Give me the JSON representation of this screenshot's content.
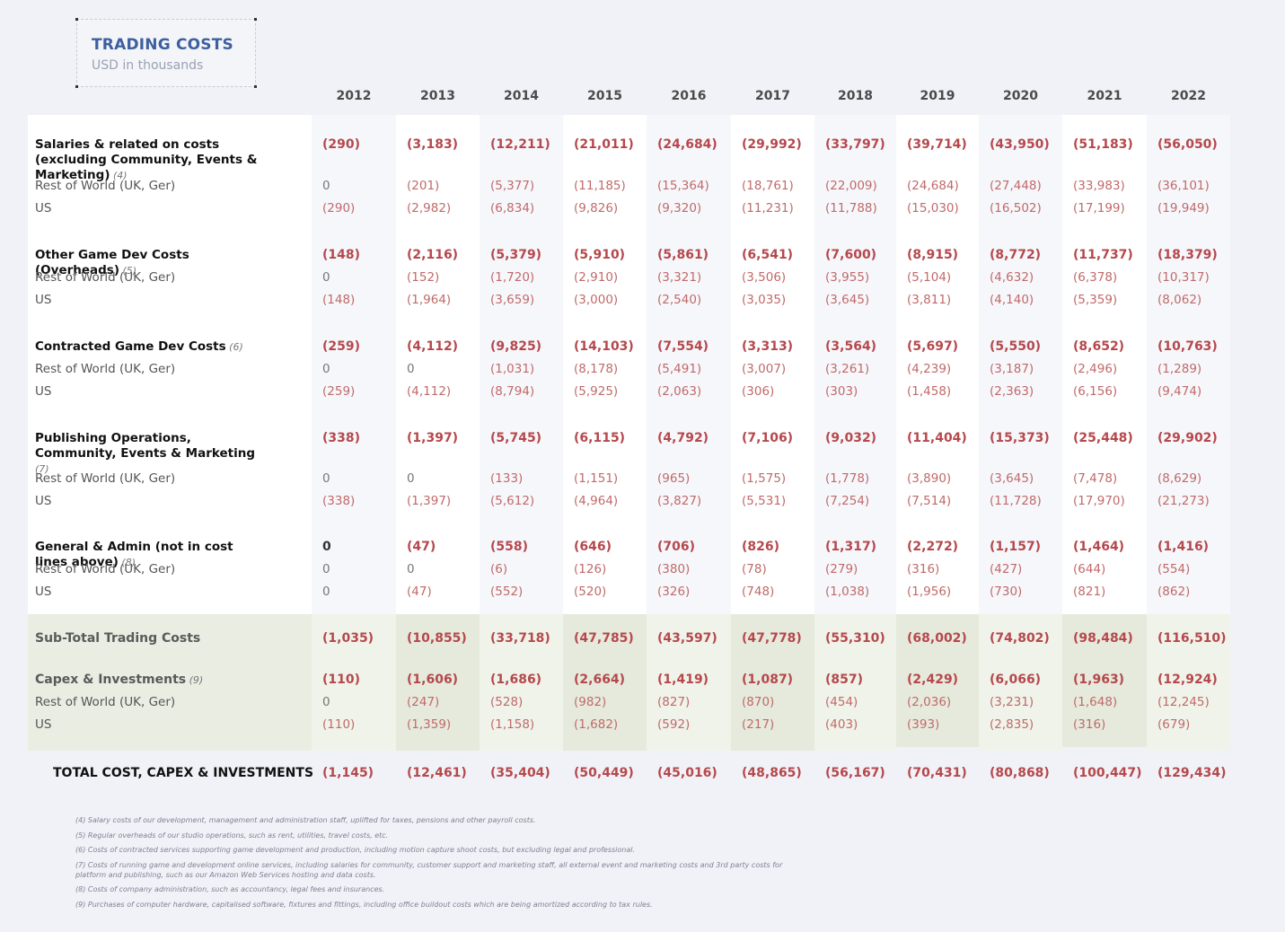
{
  "title": "TRADING COSTS",
  "subtitle": "USD in thousands",
  "years": [
    "2012",
    "2013",
    "2014",
    "2015",
    "2016",
    "2017",
    "2018",
    "2019",
    "2020",
    "2021",
    "2022"
  ],
  "rows": [
    {
      "type": "h",
      "label": "Salaries & related on costs (excluding Community, Events & Marketing)",
      "fn": "(4)",
      "values": [
        "(290)",
        "(3,183)",
        "(12,211)",
        "(21,011)",
        "(24,684)",
        "(29,992)",
        "(33,797)",
        "(39,714)",
        "(43,950)",
        "(51,183)",
        "(56,050)"
      ]
    },
    {
      "type": "d",
      "label": "Rest of World (UK, Ger)",
      "values": [
        "0",
        "(201)",
        "(5,377)",
        "(11,185)",
        "(15,364)",
        "(18,761)",
        "(22,009)",
        "(24,684)",
        "(27,448)",
        "(33,983)",
        "(36,101)"
      ]
    },
    {
      "type": "d",
      "label": "US",
      "values": [
        "(290)",
        "(2,982)",
        "(6,834)",
        "(9,826)",
        "(9,320)",
        "(11,231)",
        "(11,788)",
        "(15,030)",
        "(16,502)",
        "(17,199)",
        "(19,949)"
      ]
    },
    {
      "type": "h",
      "label": "Other Game Dev Costs (Overheads)",
      "fn": "(5)",
      "values": [
        "(148)",
        "(2,116)",
        "(5,379)",
        "(5,910)",
        "(5,861)",
        "(6,541)",
        "(7,600)",
        "(8,915)",
        "(8,772)",
        "(11,737)",
        "(18,379)"
      ]
    },
    {
      "type": "d",
      "label": "Rest of World (UK, Ger)",
      "values": [
        "0",
        "(152)",
        "(1,720)",
        "(2,910)",
        "(3,321)",
        "(3,506)",
        "(3,955)",
        "(5,104)",
        "(4,632)",
        "(6,378)",
        "(10,317)"
      ]
    },
    {
      "type": "d",
      "label": "US",
      "values": [
        "(148)",
        "(1,964)",
        "(3,659)",
        "(3,000)",
        "(2,540)",
        "(3,035)",
        "(3,645)",
        "(3,811)",
        "(4,140)",
        "(5,359)",
        "(8,062)"
      ]
    },
    {
      "type": "h",
      "label": "Contracted Game Dev Costs",
      "fn": "(6)",
      "values": [
        "(259)",
        "(4,112)",
        "(9,825)",
        "(14,103)",
        "(7,554)",
        "(3,313)",
        "(3,564)",
        "(5,697)",
        "(5,550)",
        "(8,652)",
        "(10,763)"
      ]
    },
    {
      "type": "d",
      "label": "Rest of World (UK, Ger)",
      "values": [
        "0",
        "0",
        "(1,031)",
        "(8,178)",
        "(5,491)",
        "(3,007)",
        "(3,261)",
        "(4,239)",
        "(3,187)",
        "(2,496)",
        "(1,289)"
      ]
    },
    {
      "type": "d",
      "label": "US",
      "values": [
        "(259)",
        "(4,112)",
        "(8,794)",
        "(5,925)",
        "(2,063)",
        "(306)",
        "(303)",
        "(1,458)",
        "(2,363)",
        "(6,156)",
        "(9,474)"
      ]
    },
    {
      "type": "h",
      "label": "Publishing Operations, Community, Events & Marketing",
      "fn": "(7)",
      "values": [
        "(338)",
        "(1,397)",
        "(5,745)",
        "(6,115)",
        "(4,792)",
        "(7,106)",
        "(9,032)",
        "(11,404)",
        "(15,373)",
        "(25,448)",
        "(29,902)"
      ]
    },
    {
      "type": "d",
      "label": "Rest of World (UK, Ger)",
      "values": [
        "0",
        "0",
        "(133)",
        "(1,151)",
        "(965)",
        "(1,575)",
        "(1,778)",
        "(3,890)",
        "(3,645)",
        "(7,478)",
        "(8,629)"
      ]
    },
    {
      "type": "d",
      "label": "US",
      "values": [
        "(338)",
        "(1,397)",
        "(5,612)",
        "(4,964)",
        "(3,827)",
        "(5,531)",
        "(7,254)",
        "(7,514)",
        "(11,728)",
        "(17,970)",
        "(21,273)"
      ]
    },
    {
      "type": "h",
      "label": "General & Admin (not in cost lines above)",
      "fn": "(8)",
      "values": [
        "0",
        "(47)",
        "(558)",
        "(646)",
        "(706)",
        "(826)",
        "(1,317)",
        "(2,272)",
        "(1,157)",
        "(1,464)",
        "(1,416)"
      ]
    },
    {
      "type": "d",
      "label": "Rest of World (UK, Ger)",
      "values": [
        "0",
        "0",
        "(6)",
        "(126)",
        "(380)",
        "(78)",
        "(279)",
        "(316)",
        "(427)",
        "(644)",
        "(554)"
      ]
    },
    {
      "type": "d",
      "label": "US",
      "values": [
        "0",
        "(47)",
        "(552)",
        "(520)",
        "(326)",
        "(748)",
        "(1,038)",
        "(1,956)",
        "(730)",
        "(821)",
        "(862)"
      ]
    },
    {
      "type": "sub",
      "label": "Sub-Total Trading Costs",
      "values": [
        "(1,035)",
        "(10,855)",
        "(33,718)",
        "(47,785)",
        "(43,597)",
        "(47,778)",
        "(55,310)",
        "(68,002)",
        "(74,802)",
        "(98,484)",
        "(116,510)"
      ]
    },
    {
      "type": "cap",
      "label": "Capex & Investments",
      "fn": "(9)",
      "values": [
        "(110)",
        "(1,606)",
        "(1,686)",
        "(2,664)",
        "(1,419)",
        "(1,087)",
        "(857)",
        "(2,429)",
        "(6,066)",
        "(1,963)",
        "(12,924)"
      ]
    },
    {
      "type": "d",
      "label": "Rest of World (UK, Ger)",
      "values": [
        "0",
        "(247)",
        "(528)",
        "(982)",
        "(827)",
        "(870)",
        "(454)",
        "(2,036)",
        "(3,231)",
        "(1,648)",
        "(12,245)"
      ]
    },
    {
      "type": "d",
      "label": "US",
      "values": [
        "(110)",
        "(1,359)",
        "(1,158)",
        "(1,682)",
        "(592)",
        "(217)",
        "(403)",
        "(393)",
        "(2,835)",
        "(316)",
        "(679)"
      ]
    },
    {
      "type": "total",
      "label": "TOTAL COST, CAPEX & INVESTMENTS",
      "values": [
        "(1,145)",
        "(12,461)",
        "(35,404)",
        "(50,449)",
        "(45,016)",
        "(48,865)",
        "(56,167)",
        "(70,431)",
        "(80,868)",
        "(100,447)",
        "(129,434)"
      ]
    }
  ],
  "footnotes": [
    "(4)   Salary costs of our development, management and administration staff, uplifted for taxes, pensions and other payroll costs.",
    "(5)   Regular overheads of our studio operations, such as rent, utilities, travel costs, etc.",
    "(6)   Costs of contracted services supporting game development and production, including motion capture shoot costs, but excluding legal and professional.",
    "(7)   Costs of running game and development online services, including salaries for community, customer support and marketing staff, all external event and marketing costs and 3rd party costs for platform and publishing, such as our Amazon Web Services hosting and data costs.",
    "(8)   Costs of company administration, such as accountancy, legal fees and insurances.",
    "(9)   Purchases of computer hardware, capitalised software, fixtures and fittings, including office buildout costs which are being amortized according to tax rules."
  ],
  "colors": {
    "title": "#3d5fa0",
    "negative": "#b5484c",
    "subtotal_bg": "#e9ede2"
  }
}
